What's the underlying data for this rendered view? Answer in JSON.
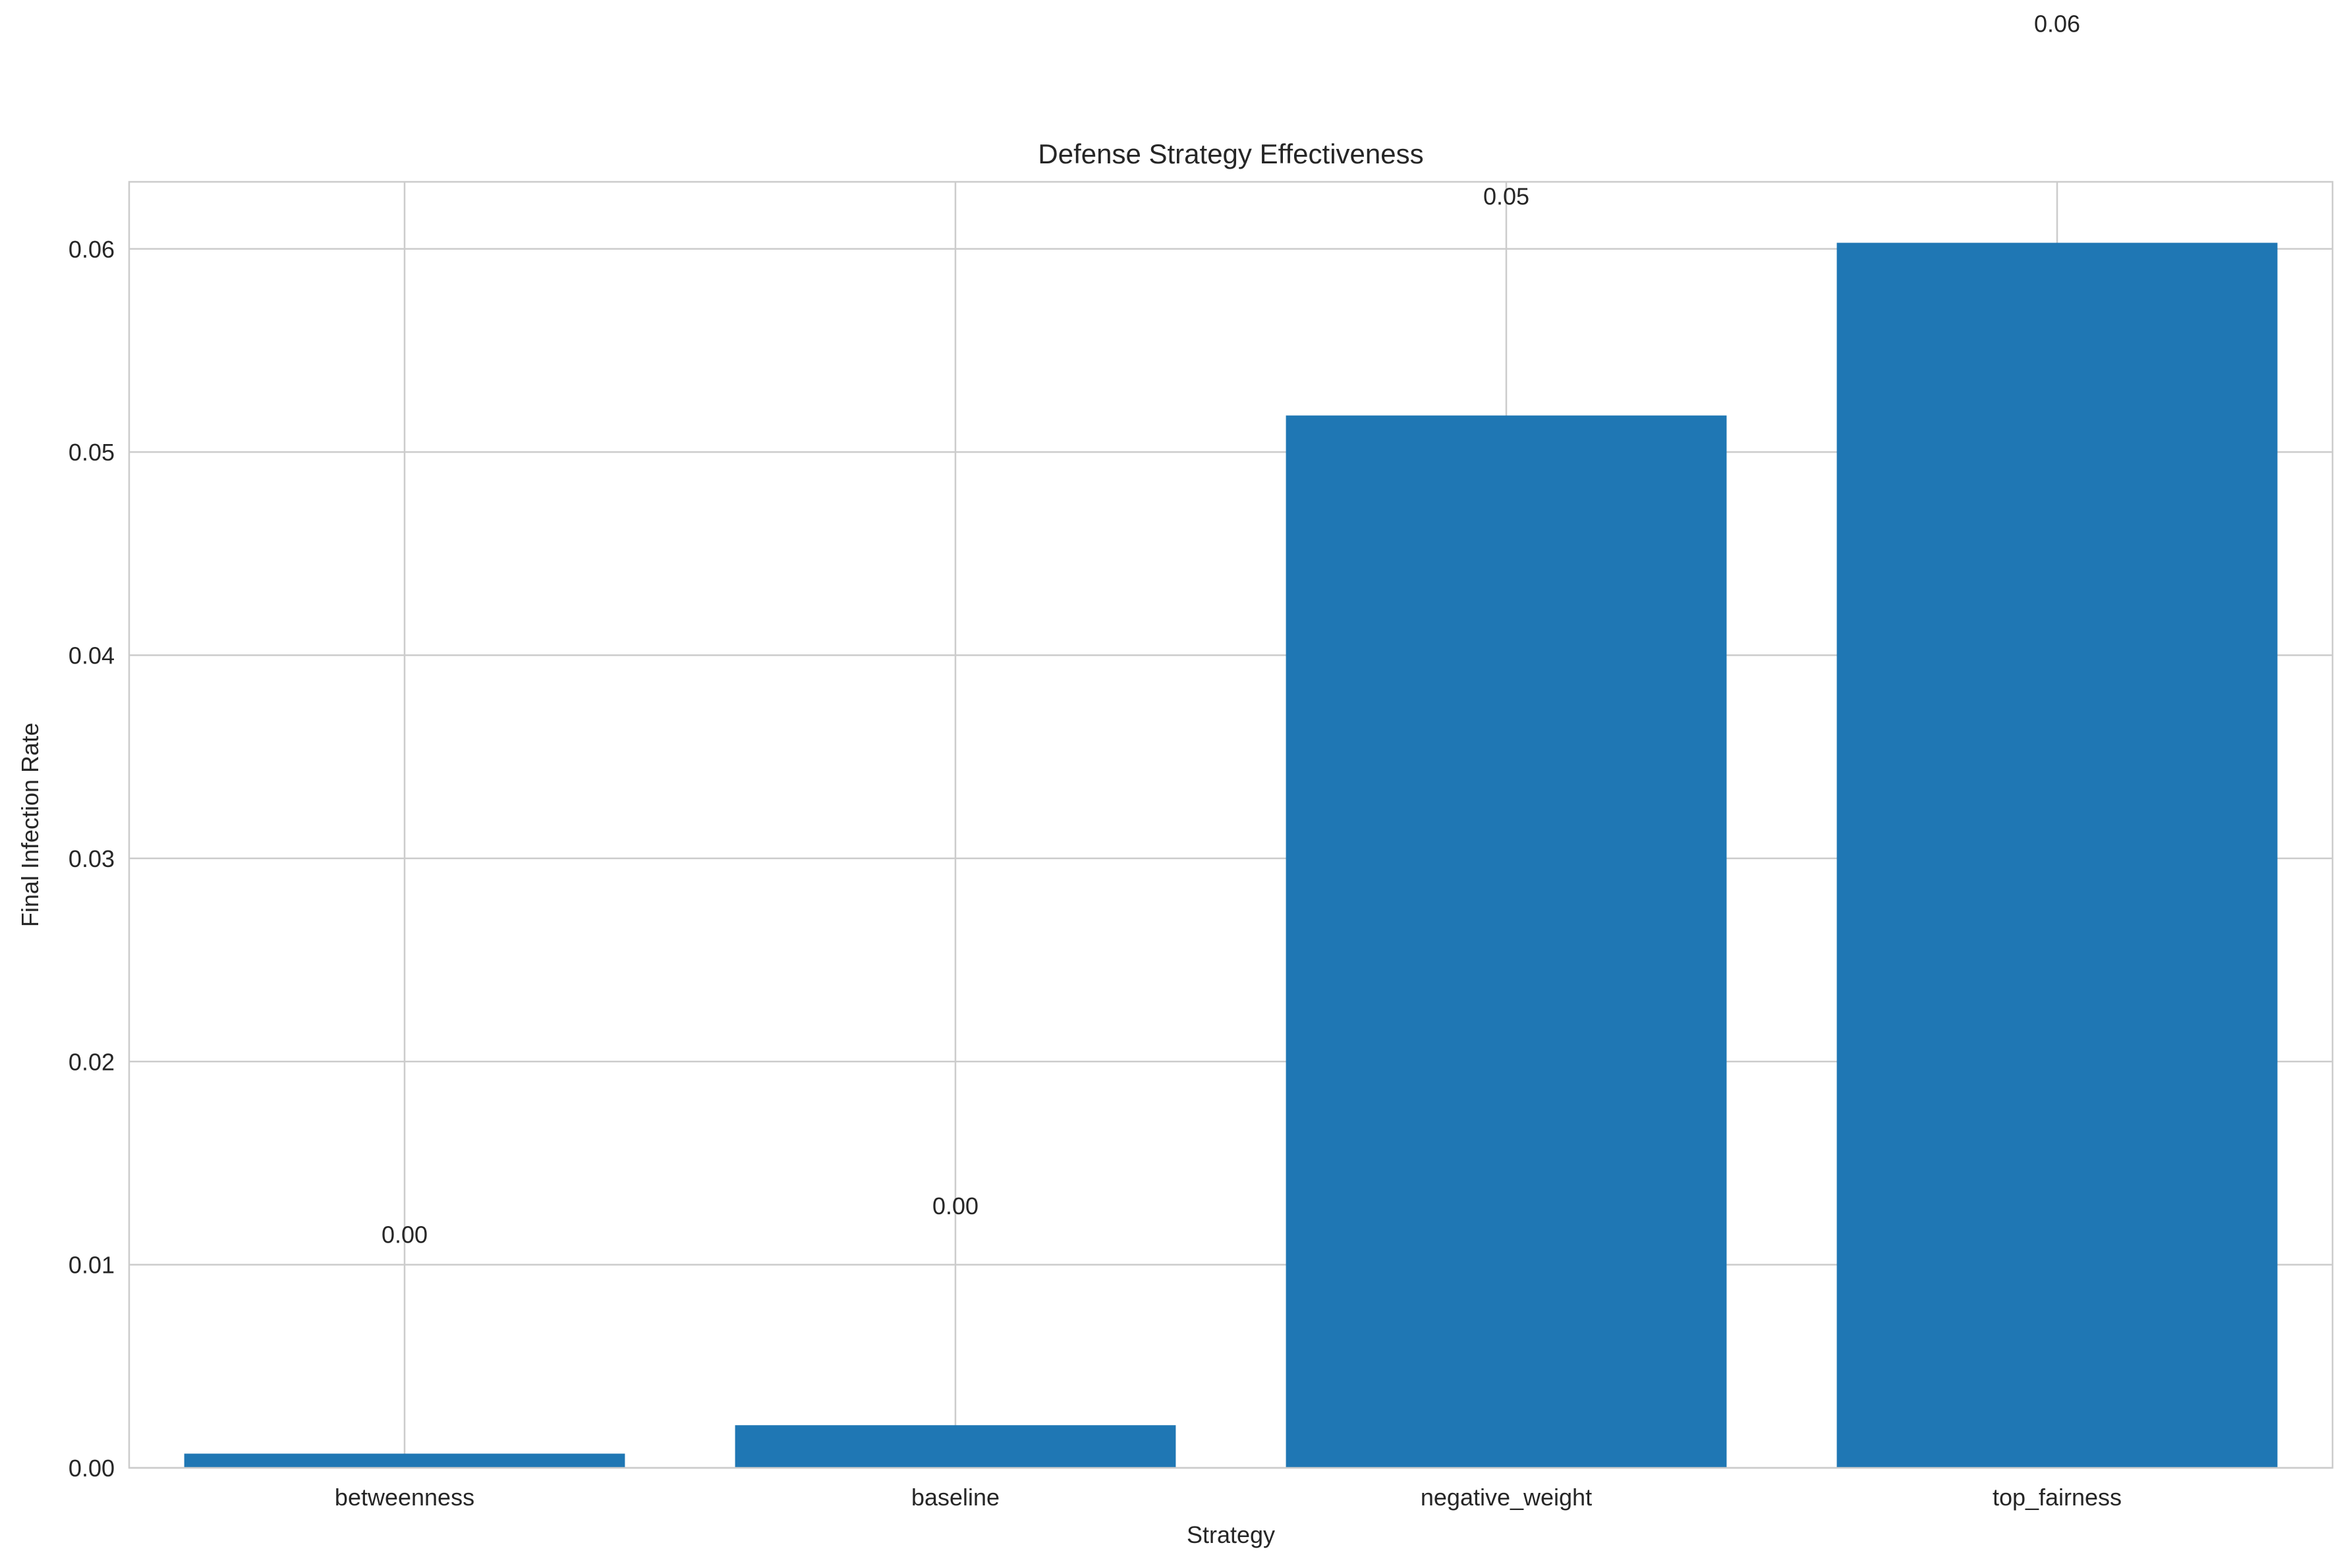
{
  "chart_data": {
    "type": "bar",
    "title": "Defense Strategy Effectiveness",
    "xlabel": "Strategy",
    "ylabel": "Final Infection Rate",
    "categories": [
      "betweenness",
      "baseline",
      "negative_weight",
      "top_fairness"
    ],
    "values": [
      0.0007,
      0.0021,
      0.0518,
      0.0603
    ],
    "data_labels": [
      "0.00",
      "0.00",
      "0.05",
      "0.06"
    ],
    "y_ticks": [
      0.0,
      0.01,
      0.02,
      0.03,
      0.04,
      0.05,
      0.06
    ],
    "y_tick_labels": [
      "0.00",
      "0.01",
      "0.02",
      "0.03",
      "0.04",
      "0.05",
      "0.06"
    ],
    "ylim": [
      0,
      0.0633
    ],
    "grid": true,
    "colors": {
      "bar": "#1f77b4",
      "grid": "#cccccc",
      "spine": "#cccccc",
      "text": "#262626",
      "background": "#ffffff"
    }
  }
}
